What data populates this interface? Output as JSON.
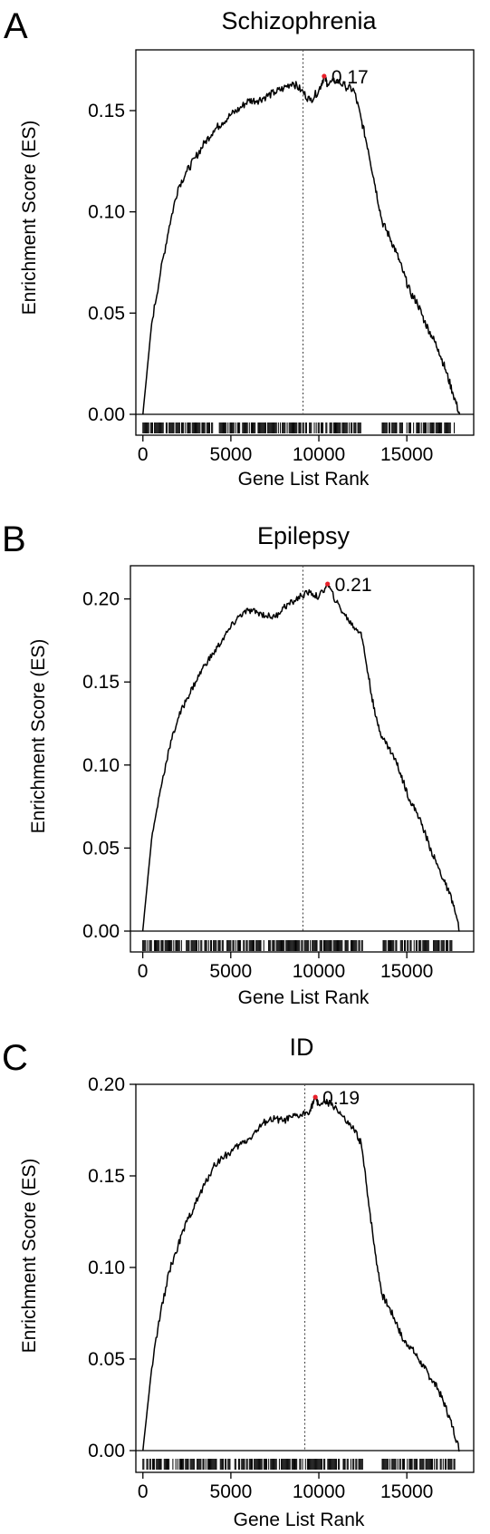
{
  "chart_data": [
    {
      "panel": "A",
      "type": "line",
      "title": "Schizophrenia",
      "xlabel": "Gene List Rank",
      "ylabel": "Enrichment Score (ES)",
      "xlim": [
        -400,
        18800
      ],
      "ylim": [
        -0.01,
        0.18
      ],
      "xticks": [
        0,
        5000,
        10000,
        15000
      ],
      "xtick_labels": [
        "0",
        "5000",
        "10000",
        "15000"
      ],
      "yticks": [
        0.0,
        0.05,
        0.1,
        0.15
      ],
      "ytick_labels": [
        "0.00",
        "0.05",
        "0.10",
        "0.15"
      ],
      "divider_rank": 9100,
      "peak": {
        "x": 10300,
        "y": 0.167,
        "label": "0.17"
      },
      "x": [
        0,
        500,
        1000,
        1500,
        2000,
        2500,
        3000,
        3500,
        4000,
        4500,
        5000,
        5500,
        6000,
        6500,
        7000,
        7500,
        8000,
        8500,
        9000,
        9500,
        10000,
        10300,
        10500,
        11000,
        11500,
        12000,
        12400,
        12800,
        13200,
        13600,
        14000,
        14400,
        14800,
        15200,
        15600,
        16000,
        16400,
        16800,
        17200,
        17600,
        18000
      ],
      "y": [
        0.0,
        0.045,
        0.07,
        0.093,
        0.112,
        0.12,
        0.127,
        0.134,
        0.14,
        0.144,
        0.148,
        0.151,
        0.155,
        0.155,
        0.157,
        0.159,
        0.161,
        0.164,
        0.16,
        0.155,
        0.16,
        0.167,
        0.163,
        0.165,
        0.162,
        0.16,
        0.146,
        0.131,
        0.113,
        0.095,
        0.088,
        0.08,
        0.07,
        0.06,
        0.055,
        0.046,
        0.039,
        0.032,
        0.022,
        0.011,
        0.0
      ],
      "hits": [
        [
          0,
          8100
        ],
        [
          8200,
          12400
        ],
        [
          13600,
          14800
        ],
        [
          15000,
          17800
        ]
      ]
    },
    {
      "panel": "B",
      "type": "line",
      "title": "Epilepsy",
      "xlabel": "Gene List Rank",
      "ylabel": "Enrichment Score (ES)",
      "xlim": [
        -700,
        18800
      ],
      "ylim": [
        -0.01,
        0.22
      ],
      "xticks": [
        0,
        5000,
        10000,
        15000
      ],
      "xtick_labels": [
        "0",
        "5000",
        "10000",
        "15000"
      ],
      "yticks": [
        0.0,
        0.05,
        0.1,
        0.15,
        0.2
      ],
      "ytick_labels": [
        "0.00",
        "0.05",
        "0.10",
        "0.15",
        "0.20"
      ],
      "divider_rank": 9100,
      "peak": {
        "x": 10500,
        "y": 0.209,
        "label": "0.21"
      },
      "x": [
        0,
        500,
        1000,
        1500,
        2000,
        2500,
        3000,
        3500,
        4000,
        4500,
        5000,
        5500,
        6000,
        6500,
        7000,
        7500,
        8000,
        8500,
        9000,
        9500,
        10000,
        10500,
        11000,
        11500,
        12000,
        12400,
        12800,
        13200,
        13600,
        14000,
        14400,
        14800,
        15200,
        15600,
        16000,
        16400,
        16800,
        17200,
        17600,
        18000
      ],
      "y": [
        0.0,
        0.055,
        0.085,
        0.11,
        0.128,
        0.14,
        0.15,
        0.16,
        0.167,
        0.175,
        0.183,
        0.19,
        0.193,
        0.192,
        0.19,
        0.189,
        0.195,
        0.198,
        0.202,
        0.204,
        0.201,
        0.209,
        0.198,
        0.19,
        0.183,
        0.18,
        0.155,
        0.13,
        0.117,
        0.11,
        0.102,
        0.09,
        0.078,
        0.071,
        0.06,
        0.048,
        0.038,
        0.028,
        0.018,
        0.0
      ],
      "hits": [
        [
          0,
          12600
        ],
        [
          13600,
          17600
        ]
      ]
    },
    {
      "panel": "C",
      "type": "line",
      "title": "ID",
      "xlabel": "Gene List Rank",
      "ylabel": "Enrichment Score (ES)",
      "xlim": [
        -400,
        18800
      ],
      "ylim": [
        -0.01,
        0.2
      ],
      "xticks": [
        0,
        5000,
        10000,
        15000
      ],
      "xtick_labels": [
        "0",
        "5000",
        "10000",
        "15000"
      ],
      "yticks": [
        0.0,
        0.05,
        0.1,
        0.15,
        0.2
      ],
      "ytick_labels": [
        "0.00",
        "0.05",
        "0.10",
        "0.15",
        "0.20"
      ],
      "divider_rank": 9200,
      "peak": {
        "x": 9800,
        "y": 0.193,
        "label": "0.19"
      },
      "x": [
        0,
        500,
        1000,
        1500,
        2000,
        2500,
        3000,
        3500,
        4000,
        4500,
        5000,
        5500,
        6000,
        6500,
        7000,
        7500,
        8000,
        8500,
        9000,
        9500,
        9800,
        10000,
        10500,
        11000,
        11500,
        12000,
        12400,
        12800,
        13200,
        13600,
        14000,
        14400,
        14800,
        15200,
        15600,
        16000,
        16400,
        16800,
        17200,
        17600,
        18000
      ],
      "y": [
        0.0,
        0.045,
        0.075,
        0.098,
        0.112,
        0.125,
        0.135,
        0.145,
        0.155,
        0.16,
        0.163,
        0.167,
        0.17,
        0.175,
        0.18,
        0.181,
        0.18,
        0.182,
        0.183,
        0.186,
        0.193,
        0.189,
        0.19,
        0.187,
        0.18,
        0.175,
        0.168,
        0.138,
        0.108,
        0.085,
        0.078,
        0.07,
        0.06,
        0.057,
        0.051,
        0.045,
        0.039,
        0.033,
        0.024,
        0.013,
        0.0
      ],
      "hits": [
        [
          0,
          12500
        ],
        [
          13600,
          17900
        ]
      ]
    }
  ]
}
